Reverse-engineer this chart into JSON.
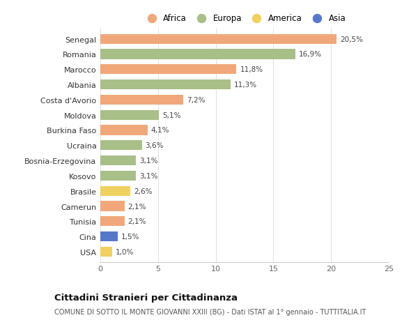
{
  "countries": [
    "Senegal",
    "Romania",
    "Marocco",
    "Albania",
    "Costa d'Avorio",
    "Moldova",
    "Burkina Faso",
    "Ucraina",
    "Bosnia-Erzegovina",
    "Kosovo",
    "Brasile",
    "Camerun",
    "Tunisia",
    "Cina",
    "USA"
  ],
  "values": [
    20.5,
    16.9,
    11.8,
    11.3,
    7.2,
    5.1,
    4.1,
    3.6,
    3.1,
    3.1,
    2.6,
    2.1,
    2.1,
    1.5,
    1.0
  ],
  "labels": [
    "20,5%",
    "16,9%",
    "11,8%",
    "11,3%",
    "7,2%",
    "5,1%",
    "4,1%",
    "3,6%",
    "3,1%",
    "3,1%",
    "2,6%",
    "2,1%",
    "2,1%",
    "1,5%",
    "1,0%"
  ],
  "continents": [
    "Africa",
    "Europa",
    "Africa",
    "Europa",
    "Africa",
    "Europa",
    "Africa",
    "Europa",
    "Europa",
    "Europa",
    "America",
    "Africa",
    "Africa",
    "Asia",
    "America"
  ],
  "colors": {
    "Africa": "#F0A87A",
    "Europa": "#A8BF88",
    "America": "#F0D060",
    "Asia": "#5578C8"
  },
  "legend_order": [
    "Africa",
    "Europa",
    "America",
    "Asia"
  ],
  "xlim": [
    0,
    25
  ],
  "xticks": [
    0,
    5,
    10,
    15,
    20,
    25
  ],
  "title1": "Cittadini Stranieri per Cittadinanza",
  "title2": "COMUNE DI SOTTO IL MONTE GIOVANNI XXIII (BG) - Dati ISTAT al 1° gennaio - TUTTITALIA.IT",
  "background_color": "#ffffff",
  "bar_height": 0.65
}
